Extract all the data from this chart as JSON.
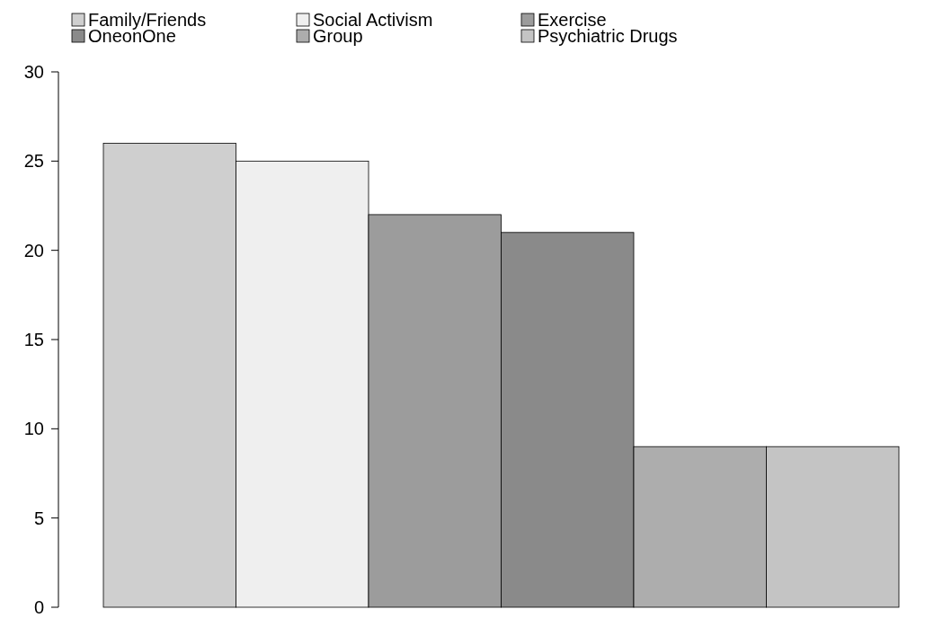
{
  "chart_data": {
    "type": "bar",
    "categories": [
      null
    ],
    "series": [
      {
        "name": "Family/Friends",
        "color": "#cfcfcf",
        "values": [
          26
        ]
      },
      {
        "name": "Social Activism",
        "color": "#efefef",
        "values": [
          25
        ]
      },
      {
        "name": "Exercise",
        "color": "#9c9c9c",
        "values": [
          22
        ]
      },
      {
        "name": "OneonOne",
        "color": "#8a8a8a",
        "values": [
          21
        ]
      },
      {
        "name": "Group",
        "color": "#adadad",
        "values": [
          9
        ]
      },
      {
        "name": "Psychiatric Drugs",
        "color": "#c4c4c4",
        "values": [
          9
        ]
      }
    ],
    "ylim": [
      0,
      30
    ],
    "yticks": [
      0,
      5,
      10,
      15,
      20,
      25,
      30
    ],
    "legend": "top",
    "grid": false
  }
}
